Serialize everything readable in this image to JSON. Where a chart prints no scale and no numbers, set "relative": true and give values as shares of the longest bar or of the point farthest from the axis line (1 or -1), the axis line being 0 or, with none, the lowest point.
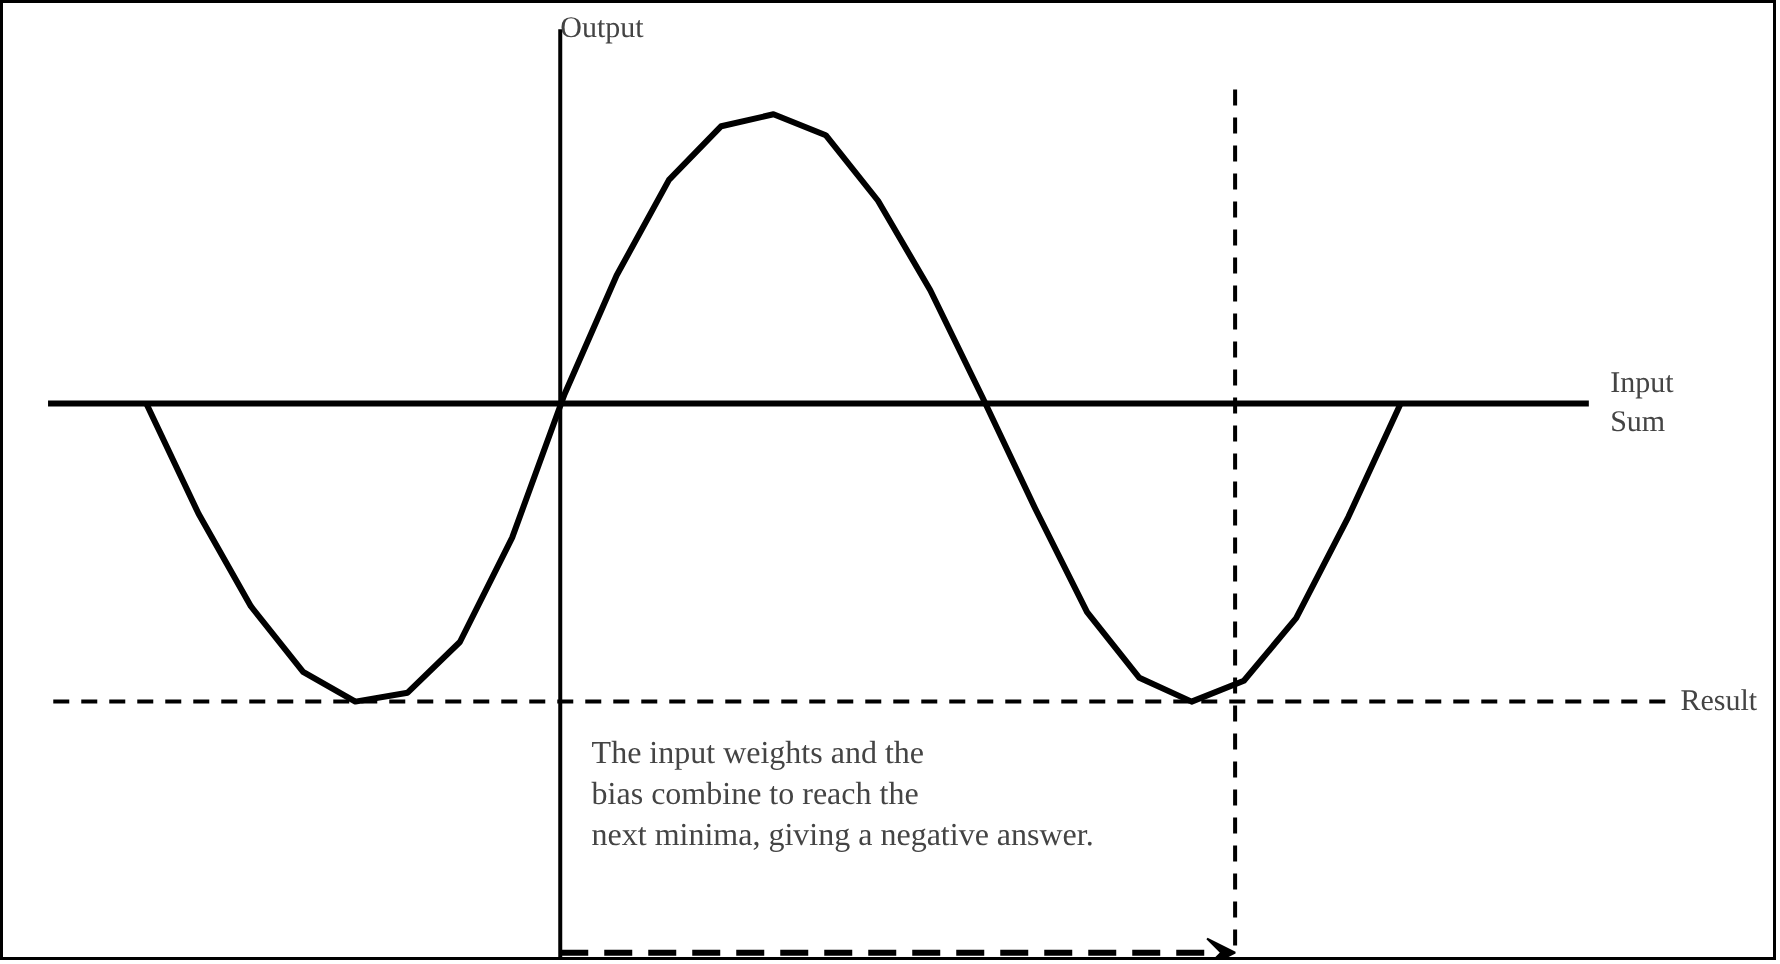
{
  "chart_data": {
    "type": "line",
    "relative": true,
    "ylabel": "Output",
    "categories": [
      null,
      null,
      null,
      null,
      null,
      null,
      null,
      null,
      null,
      null,
      null,
      null,
      null,
      null,
      null,
      null,
      null,
      null,
      null,
      null,
      null,
      null,
      null,
      null,
      null
    ],
    "values": [
      0,
      -0.37,
      -0.68,
      -0.9,
      -1.0,
      -0.97,
      -0.8,
      -0.45,
      0.03,
      0.43,
      0.75,
      0.93,
      0.97,
      0.9,
      0.68,
      0.38,
      0.02,
      -0.35,
      -0.7,
      -0.92,
      -1.0,
      -0.93,
      -0.72,
      -0.38,
      0
    ],
    "color": "#000000",
    "marker": "none",
    "line_style": "solid",
    "grid": false,
    "ref_lines": [
      {
        "axis": "y",
        "value": -1.0,
        "label": "Result",
        "line_style": "dashed",
        "color": "#000000"
      }
    ],
    "annotations": [
      "Input Sum",
      "The input weights and the bias combine to reach the next minima, giving a negative answer."
    ]
  }
}
